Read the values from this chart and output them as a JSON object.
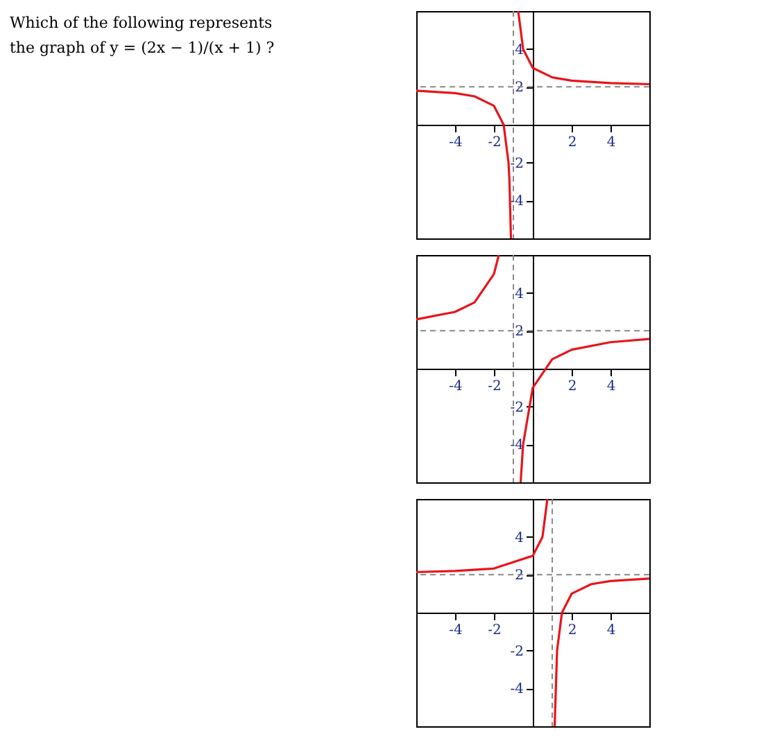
{
  "chart_data": [
    {
      "type": "other",
      "title": "Which of the following represents",
      "annotations": [
        "the graph of  y = (2x − 1)/(x + 1) ?"
      ]
    },
    {
      "type": "line",
      "xlim": [
        -6,
        6
      ],
      "ylim": [
        -6,
        6
      ],
      "xticks": [
        -4,
        -2,
        2,
        4
      ],
      "yticks": [
        -4,
        -2,
        2,
        4
      ],
      "grid": false,
      "line_style": "solid",
      "ref_lines": [
        {
          "axis": "x",
          "value": -1,
          "color": "#888888",
          "line_style": "dashed"
        },
        {
          "axis": "y",
          "value": 2,
          "color": "#888888",
          "line_style": "dashed"
        }
      ],
      "series": [
        {
          "color": "#e8141b",
          "x": [
            -6,
            -4,
            -3,
            -2,
            -1.5,
            -1.25,
            -1.2,
            -1.125
          ],
          "values": [
            1.8,
            1.67,
            1.5,
            1,
            0,
            -2,
            -3,
            -6
          ]
        },
        {
          "color": "#e8141b",
          "x": [
            -0.75,
            -0.5,
            0,
            1,
            2,
            4,
            6
          ],
          "values": [
            6,
            4,
            3,
            2.5,
            2.33,
            2.2,
            2.14
          ]
        }
      ]
    },
    {
      "type": "line",
      "xlim": [
        -6,
        6
      ],
      "ylim": [
        -6,
        6
      ],
      "xticks": [
        -4,
        -2,
        2,
        4
      ],
      "yticks": [
        -4,
        -2,
        2,
        4
      ],
      "grid": false,
      "line_style": "solid",
      "ref_lines": [
        {
          "axis": "x",
          "value": -1,
          "color": "#888888",
          "line_style": "dashed"
        },
        {
          "axis": "y",
          "value": 2,
          "color": "#888888",
          "line_style": "dashed"
        }
      ],
      "series": [
        {
          "color": "#e8141b",
          "x": [
            -6,
            -4,
            -3,
            -2,
            -1.75
          ],
          "values": [
            2.6,
            3,
            3.5,
            5,
            6
          ]
        },
        {
          "color": "#e8141b",
          "x": [
            -0.625,
            -0.5,
            0,
            1,
            2,
            4,
            6
          ],
          "values": [
            -6,
            -4,
            -1,
            0.5,
            1,
            1.4,
            1.57
          ]
        }
      ]
    },
    {
      "type": "line",
      "xlim": [
        -6,
        6
      ],
      "ylim": [
        -6,
        6
      ],
      "xticks": [
        -4,
        -2,
        2,
        4
      ],
      "yticks": [
        -4,
        -2,
        2,
        4
      ],
      "grid": false,
      "line_style": "solid",
      "ref_lines": [
        {
          "axis": "x",
          "value": 1,
          "color": "#888888",
          "line_style": "dashed"
        },
        {
          "axis": "y",
          "value": 2,
          "color": "#888888",
          "line_style": "dashed"
        }
      ],
      "series": [
        {
          "color": "#e8141b",
          "x": [
            -6,
            -4,
            -2,
            0,
            0.5,
            0.75
          ],
          "values": [
            2.14,
            2.2,
            2.33,
            3,
            4,
            6
          ]
        },
        {
          "color": "#e8141b",
          "x": [
            1.125,
            1.25,
            1.5,
            2,
            3,
            4,
            6
          ],
          "values": [
            -6,
            -2,
            0,
            1,
            1.5,
            1.67,
            1.8
          ]
        }
      ]
    }
  ]
}
